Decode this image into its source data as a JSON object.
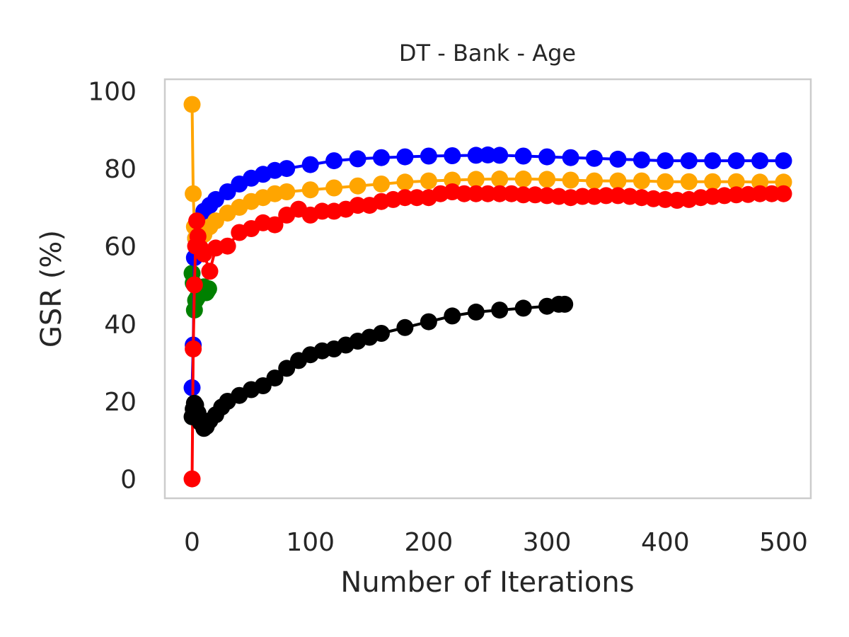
{
  "chart_data": {
    "type": "line",
    "title": "DT - Bank - Age",
    "xlabel": "Number of Iterations",
    "ylabel": "GSR (%)",
    "xlim": [
      -23,
      523
    ],
    "ylim": [
      -5,
      103
    ],
    "xticks": [
      0,
      100,
      200,
      300,
      400,
      500
    ],
    "yticks": [
      0,
      20,
      40,
      60,
      80,
      100
    ],
    "grid": false,
    "legend": "none",
    "series": [
      {
        "color": "#008000",
        "x": [
          0,
          1,
          2,
          3,
          4,
          5,
          6,
          7,
          8,
          9,
          10,
          11,
          12,
          13,
          14
        ],
        "y": [
          53,
          50.5,
          43.5,
          46,
          46.5,
          47,
          48,
          48.5,
          49,
          48.5,
          49.5,
          48.5,
          48,
          48.5,
          49
        ]
      },
      {
        "color": "#0000ff",
        "x": [
          0,
          1,
          2,
          3,
          5,
          10,
          15,
          20,
          30,
          40,
          50,
          60,
          70,
          80,
          100,
          120,
          140,
          160,
          180,
          200,
          220,
          240,
          250,
          260,
          280,
          300,
          320,
          340,
          360,
          380,
          400,
          420,
          440,
          460,
          480,
          500
        ],
        "y": [
          23.5,
          34.5,
          57,
          62,
          66.5,
          69,
          70.5,
          72,
          74,
          76,
          77.5,
          78.5,
          79.5,
          80,
          81,
          82,
          82.5,
          82.8,
          83,
          83.2,
          83.3,
          83.4,
          83.5,
          83.4,
          83.2,
          83,
          82.8,
          82.6,
          82.4,
          82.2,
          82,
          82,
          82,
          82,
          82,
          82
        ]
      },
      {
        "color": "#ffa500",
        "x": [
          0,
          1,
          2,
          3,
          5,
          10,
          15,
          20,
          30,
          40,
          50,
          60,
          70,
          80,
          100,
          120,
          140,
          160,
          180,
          200,
          220,
          240,
          260,
          280,
          300,
          320,
          340,
          360,
          380,
          400,
          420,
          440,
          460,
          480,
          500
        ],
        "y": [
          96.5,
          73.5,
          65,
          62,
          61.5,
          63,
          65,
          66.5,
          68.5,
          70,
          71.5,
          72.5,
          73.5,
          74,
          74.5,
          75,
          75.5,
          76,
          76.5,
          76.8,
          77,
          77.2,
          77.3,
          77.3,
          77.2,
          77,
          76.8,
          76.8,
          76.8,
          76.6,
          76.6,
          76.6,
          76.6,
          76.5,
          76.5
        ]
      },
      {
        "color": "#ff0000",
        "x": [
          0,
          1,
          2,
          3,
          4,
          5,
          7,
          10,
          15,
          20,
          30,
          40,
          50,
          60,
          70,
          80,
          90,
          100,
          110,
          120,
          130,
          140,
          150,
          160,
          170,
          180,
          190,
          200,
          210,
          220,
          230,
          240,
          250,
          260,
          270,
          280,
          290,
          300,
          310,
          320,
          330,
          340,
          350,
          360,
          370,
          380,
          390,
          400,
          410,
          420,
          430,
          440,
          450,
          460,
          470,
          480,
          490,
          500
        ],
        "y": [
          0,
          33.5,
          50,
          60,
          66.5,
          62.5,
          59.5,
          58,
          53.5,
          59.5,
          60,
          63.5,
          64.5,
          66,
          65.5,
          68,
          69.5,
          68,
          69,
          69,
          69.5,
          70.5,
          70.5,
          71.5,
          72,
          72.5,
          72.5,
          72.5,
          73.5,
          74,
          73.5,
          73.5,
          73.5,
          73.5,
          73.5,
          73.2,
          73.2,
          73,
          72.8,
          72.5,
          72.8,
          72.8,
          73,
          73,
          72.8,
          72.5,
          72.2,
          72,
          71.8,
          72,
          72.5,
          72.8,
          73,
          73.2,
          73.3,
          73.5,
          73.5,
          73.5
        ]
      },
      {
        "color": "#000000",
        "x": [
          0,
          1,
          2,
          3,
          5,
          7,
          10,
          12,
          15,
          20,
          25,
          30,
          40,
          50,
          60,
          70,
          80,
          90,
          100,
          110,
          120,
          130,
          140,
          150,
          160,
          180,
          200,
          220,
          240,
          260,
          280,
          300,
          310,
          315
        ],
        "y": [
          16,
          18,
          19.5,
          19,
          17,
          14.5,
          13,
          13.5,
          15,
          16.5,
          18.5,
          20,
          21.5,
          23,
          24,
          26,
          28.5,
          30.5,
          32,
          33,
          33.5,
          34.5,
          35.5,
          36.5,
          37.5,
          39,
          40.5,
          42,
          43,
          43.5,
          44,
          44.5,
          45,
          45
        ]
      }
    ]
  }
}
